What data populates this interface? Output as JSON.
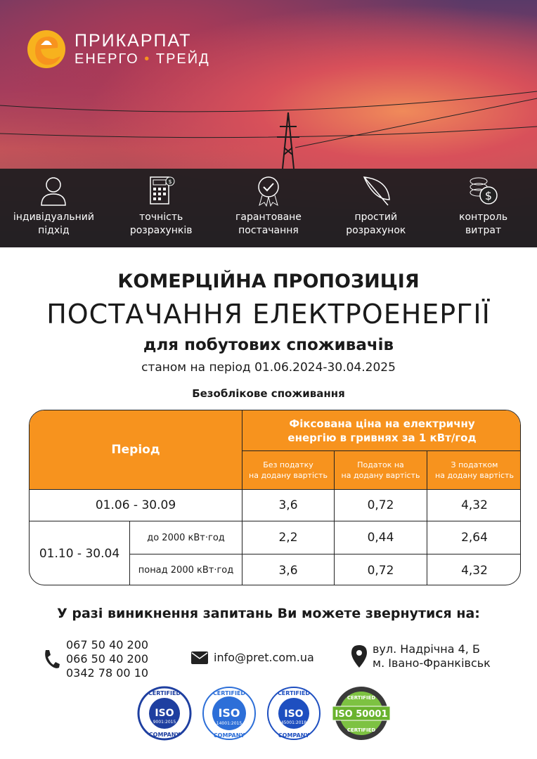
{
  "brand": {
    "line1": "ПРИКАРПАТ",
    "line2a": "ЕНЕРГО",
    "line2b": "ТРЕЙД",
    "accent": "#f7931e"
  },
  "features": [
    {
      "icon": "person-icon",
      "label1": "індивідуальний",
      "label2": "підхід"
    },
    {
      "icon": "calculator-icon",
      "label1": "точність",
      "label2": "розрахунків"
    },
    {
      "icon": "certificate-badge-icon",
      "label1": "гарантоване",
      "label2": "постачання"
    },
    {
      "icon": "feather-icon",
      "label1": "простий",
      "label2": "розрахунок"
    },
    {
      "icon": "coins-icon",
      "label1": "контроль",
      "label2": "витрат"
    }
  ],
  "title": {
    "line1": "КОМЕРЦІЙНА ПРОПОЗИЦІЯ",
    "line2": "ПОСТАЧАННЯ ЕЛЕКТРОЕНЕРГІЇ",
    "line3": "для побутових споживачів",
    "line4": "станом на період 01.06.2024-30.04.2025",
    "subtitle": "Безоблікове споживання"
  },
  "table": {
    "period_header": "Період",
    "price_header1": "Фіксована ціна на електричну",
    "price_header2": "енергію в гривнях за 1 кВт/год",
    "cols": [
      [
        "Без податку",
        "на додану вартість"
      ],
      [
        "Податок на",
        "на додану вартість"
      ],
      [
        "З податком",
        "на додану вартість"
      ]
    ],
    "rows": [
      {
        "period": "01.06 - 30.09",
        "values": [
          "3,6",
          "0,72",
          "4,32"
        ]
      },
      {
        "period": "01.10 - 30.04",
        "sub": "до 2000 кВт·год",
        "values": [
          "2,2",
          "0,44",
          "2,64"
        ]
      },
      {
        "sub": "понад 2000 кВт·год",
        "values": [
          "3,6",
          "0,72",
          "4,32"
        ]
      }
    ]
  },
  "contact": {
    "question": "У разі виникнення запитань Ви можете звернутися на:",
    "phones": [
      "067 50 40 200",
      "066 50 40 200",
      "0342 78 00 10"
    ],
    "email": "info@pret.com.ua",
    "address1": "вул. Надрічна 4, Б",
    "address2": "м. Івано-Франківськ"
  },
  "badges": [
    {
      "top": "CERTIFIED",
      "main": "ISO",
      "std": "9001:2015",
      "bottom": "COMPANY"
    },
    {
      "top": "CERTIFIED",
      "main": "ISO",
      "std": "14001:2015",
      "bottom": "COMPANY"
    },
    {
      "top": "CERTIFIED",
      "main": "ISO",
      "std": "45001:2018",
      "bottom": "COMPANY"
    },
    {
      "top": "CERTIFIED",
      "main": "ISO 50001",
      "bottom": "CERTIFIED"
    }
  ]
}
